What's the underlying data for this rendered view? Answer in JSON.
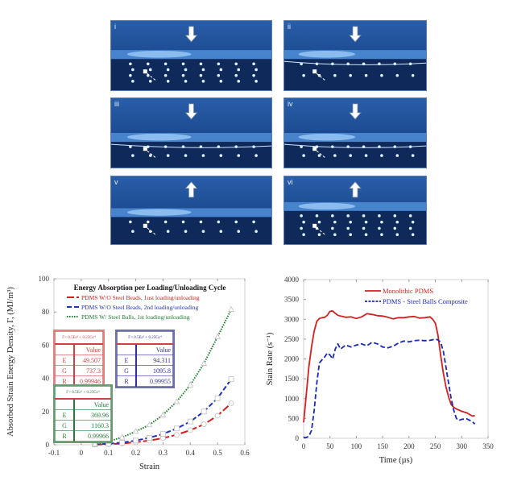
{
  "figure": {
    "panels": [
      {
        "label": "i",
        "arrow": "down"
      },
      {
        "label": "ii",
        "arrow": "down"
      },
      {
        "label": "iii",
        "arrow": "down"
      },
      {
        "label": "iv",
        "arrow": "down"
      },
      {
        "label": "v",
        "arrow": "up"
      },
      {
        "label": "vi",
        "arrow": "up"
      }
    ]
  },
  "fit_tables": [
    {
      "equation": "Γ= 0.5Eε² + 0.25Gε⁴",
      "header": "Value",
      "rows": [
        [
          "E",
          "49.507"
        ],
        [
          "G",
          "737.3"
        ],
        [
          "R",
          "0.99946"
        ]
      ],
      "color": "#d04040"
    },
    {
      "equation": "Γ= 0.5Eε² + 0.25Gε⁴",
      "header": "Value",
      "rows": [
        [
          "E",
          "94.311"
        ],
        [
          "G",
          "1095.8"
        ],
        [
          "R",
          "0.99955"
        ]
      ],
      "color": "#3030a0"
    },
    {
      "equation": "Γ= 0.5Eε² + 0.25Gε⁴",
      "header": "Value",
      "rows": [
        [
          "E",
          "369.96"
        ],
        [
          "G",
          "1160.3"
        ],
        [
          "R",
          "0.99966"
        ]
      ],
      "color": "#2a7a3a"
    }
  ],
  "chart_data": [
    {
      "type": "line",
      "title": "Energy Absorption per Loading/Unloading Cycle",
      "xlabel": "Strain",
      "ylabel": "Absorbed Strain Energy Density, Γ, (MJ/m³)",
      "xlim": [
        -0.1,
        0.6
      ],
      "ylim": [
        0,
        100
      ],
      "xticks": [
        "-0.1",
        "0",
        "0.1",
        "0.2",
        "0.3",
        "0.4",
        "0.5",
        "0.6"
      ],
      "yticks": [
        "0",
        "20",
        "40",
        "60",
        "80",
        "100"
      ],
      "grid": false,
      "legend_position": "top-left",
      "series": [
        {
          "name": "PDMS W/O Steel Beads, 1ust loading/unloading",
          "color": "#d02020",
          "marker": "circle",
          "style": "long-dash",
          "x": [
            0.05,
            0.1,
            0.15,
            0.2,
            0.25,
            0.3,
            0.35,
            0.4,
            0.45,
            0.5,
            0.55
          ],
          "y": [
            0.1,
            0.3,
            0.8,
            1.5,
            2.5,
            4.0,
            6.0,
            8.8,
            12.3,
            17.5,
            25.0
          ]
        },
        {
          "name": "PDMS W/O Steel Beads, 2nd loading/unloading",
          "color": "#2030c0",
          "marker": "square",
          "style": "dash",
          "x": [
            0.05,
            0.1,
            0.15,
            0.2,
            0.25,
            0.3,
            0.35,
            0.4,
            0.45,
            0.5,
            0.55
          ],
          "y": [
            0.2,
            0.6,
            1.3,
            2.5,
            4.2,
            6.5,
            9.8,
            14.0,
            20.0,
            28.0,
            39.5
          ]
        },
        {
          "name": "PDMS W/ Steel Balls, 1st loading/unloading",
          "color": "#1e7a2e",
          "marker": "triangle",
          "style": "dot",
          "x": [
            0.05,
            0.1,
            0.15,
            0.2,
            0.25,
            0.3,
            0.35,
            0.4,
            0.45,
            0.5,
            0.55
          ],
          "y": [
            0.4,
            2.0,
            4.5,
            8.0,
            12.0,
            18.0,
            26.0,
            36.0,
            49.0,
            65.0,
            81.5
          ]
        }
      ]
    },
    {
      "type": "line",
      "title": "",
      "xlabel": "Time (µs)",
      "ylabel": "Stain Rate (s⁻¹)",
      "xlim": [
        0,
        350
      ],
      "ylim": [
        0,
        4000
      ],
      "xticks": [
        "0",
        "50",
        "100",
        "150",
        "200",
        "250",
        "300",
        "350"
      ],
      "yticks": [
        "0",
        "500",
        "1000",
        "1500",
        "2000",
        "2500",
        "3000",
        "3500",
        "4000"
      ],
      "grid": false,
      "legend_position": "top-right",
      "series": [
        {
          "name": "Monolithic PDMS",
          "color": "#d02020",
          "style": "solid",
          "x": [
            0,
            5,
            10,
            15,
            20,
            25,
            30,
            35,
            40,
            45,
            50,
            55,
            60,
            65,
            70,
            80,
            90,
            100,
            110,
            120,
            130,
            140,
            150,
            160,
            170,
            180,
            190,
            200,
            210,
            220,
            230,
            240,
            245,
            250,
            255,
            260,
            265,
            270,
            275,
            280,
            285,
            290,
            300,
            310,
            320,
            325
          ],
          "y": [
            400,
            1100,
            1800,
            2300,
            2700,
            2950,
            3020,
            3040,
            3050,
            3100,
            3200,
            3210,
            3150,
            3100,
            3080,
            3050,
            3060,
            3020,
            3060,
            3140,
            3120,
            3090,
            3080,
            3050,
            3010,
            3040,
            3040,
            3060,
            3070,
            3030,
            3040,
            3060,
            3000,
            2900,
            2600,
            2100,
            1650,
            1300,
            1050,
            850,
            780,
            740,
            680,
            640,
            560,
            570
          ]
        },
        {
          "name": "PDMS - Steel Balls Composite",
          "color": "#1a2ab0",
          "style": "dash",
          "x": [
            0,
            5,
            10,
            15,
            20,
            25,
            30,
            35,
            40,
            45,
            50,
            55,
            60,
            65,
            70,
            80,
            90,
            100,
            110,
            120,
            130,
            140,
            150,
            160,
            170,
            180,
            190,
            200,
            210,
            220,
            230,
            240,
            250,
            255,
            260,
            265,
            270,
            275,
            280,
            285,
            290,
            295,
            300,
            310,
            320,
            325
          ],
          "y": [
            20,
            20,
            50,
            200,
            700,
            1400,
            1900,
            1980,
            2050,
            2150,
            2100,
            2000,
            2250,
            2380,
            2250,
            2350,
            2300,
            2350,
            2380,
            2330,
            2420,
            2380,
            2300,
            2280,
            2320,
            2400,
            2450,
            2430,
            2460,
            2470,
            2460,
            2470,
            2500,
            2480,
            2420,
            2200,
            1800,
            1400,
            1000,
            700,
            500,
            450,
            480,
            490,
            420,
            360
          ]
        }
      ]
    }
  ]
}
